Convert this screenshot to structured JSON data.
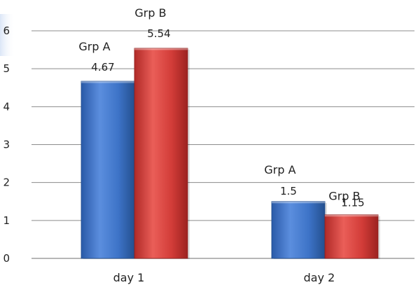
{
  "chart_data": {
    "type": "bar",
    "categories": [
      "day 1",
      "day 2"
    ],
    "series": [
      {
        "name": "Grp A",
        "values": [
          4.67,
          1.5
        ],
        "color": "#3d73c7"
      },
      {
        "name": "Grp B",
        "values": [
          5.54,
          1.15
        ],
        "color": "#d23c38"
      }
    ],
    "ylim": [
      0,
      6
    ],
    "yticks": [
      "0",
      "1",
      "2",
      "3",
      "4",
      "5",
      "6"
    ],
    "grid": true,
    "legend": "none",
    "data_labels": [
      [
        {
          "name": "Grp A",
          "value": "4.67"
        },
        {
          "name": "Grp B",
          "value": "5.54"
        }
      ],
      [
        {
          "name": "Grp A",
          "value": "1.5"
        },
        {
          "name": "Grp B",
          "value": "1.15"
        }
      ]
    ],
    "title": "",
    "xlabel": "",
    "ylabel": ""
  }
}
